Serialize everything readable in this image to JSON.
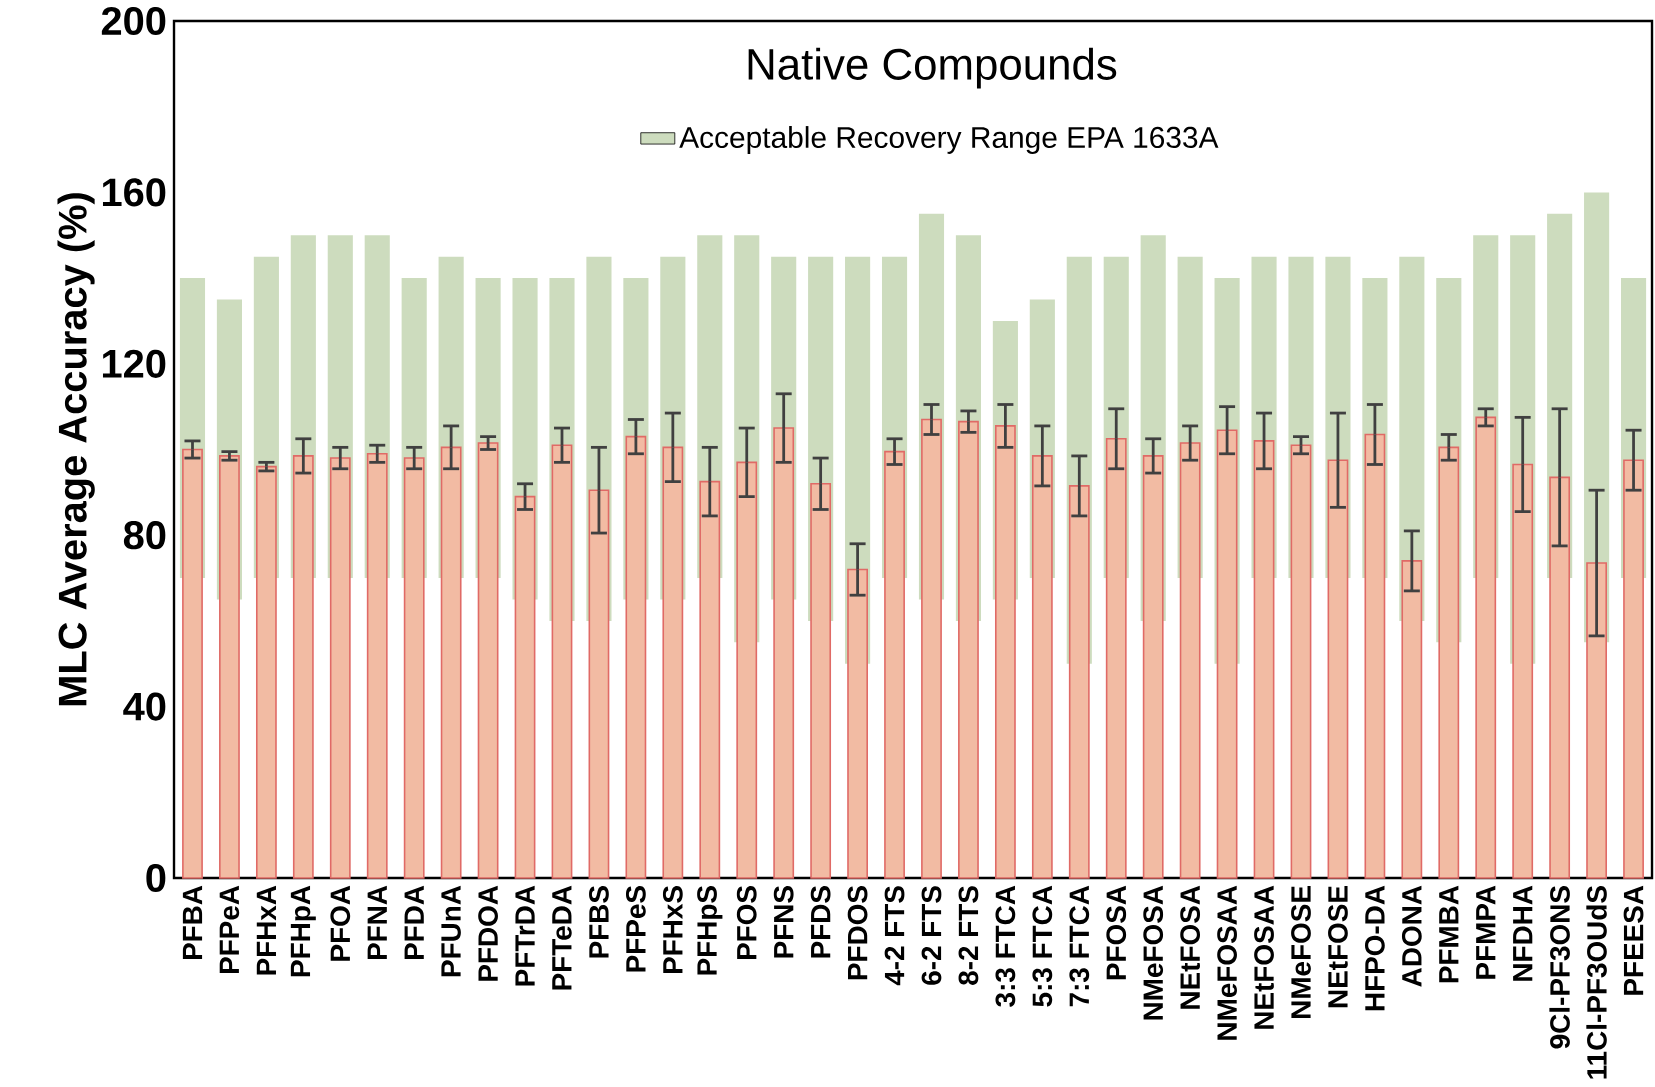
{
  "chart_data": {
    "type": "bar",
    "title": "Native Compounds",
    "ylabel": "MLC Average Accuracy (%)",
    "categories": [
      "PFBA",
      "PFPeA",
      "PFHxA",
      "PFHpA",
      "PFOA",
      "PFNA",
      "PFDA",
      "PFUnA",
      "PFDOA",
      "PFTrDA",
      "PFTeDA",
      "PFBS",
      "PFPeS",
      "PFHxS",
      "PFHpS",
      "PFOS",
      "PFNS",
      "PFDS",
      "PFDOS",
      "4-2 FTS",
      "6-2 FTS",
      "8-2 FTS",
      "3:3 FTCA",
      "5:3 FTCA",
      "7:3 FTCA",
      "PFOSA",
      "NMeFOSA",
      "NEtFOSA",
      "NMeFOSAA",
      "NEtFOSAA",
      "NMeFOSE",
      "NEtFOSE",
      "HFPO-DA",
      "ADONA",
      "PFMBA",
      "PFMPA",
      "NFDHA",
      "9Cl-PF3ONS",
      "11Cl-PF3OUdS",
      "PFEESA"
    ],
    "series": [
      {
        "name": "Acceptable Recovery Range EPA 1633A",
        "color": "#cddcbe",
        "base": [
          70,
          65,
          70,
          70,
          70,
          70,
          70,
          70,
          70,
          65,
          60,
          60,
          65,
          65,
          70,
          55,
          65,
          60,
          50,
          70,
          65,
          60,
          65,
          70,
          50,
          70,
          60,
          70,
          50,
          70,
          70,
          70,
          70,
          60,
          55,
          70,
          50,
          70,
          55,
          70
        ],
        "values": [
          70,
          70,
          75,
          80,
          80,
          80,
          70,
          75,
          70,
          75,
          80,
          85,
          75,
          80,
          80,
          95,
          80,
          85,
          95,
          75,
          90,
          90,
          65,
          65,
          95,
          75,
          90,
          75,
          90,
          75,
          75,
          75,
          70,
          85,
          85,
          80,
          100,
          85,
          105,
          70
        ]
      },
      {
        "color": "#f2bba3",
        "values": [
          100,
          98.5,
          96,
          98.5,
          98,
          99,
          98,
          100.5,
          101.5,
          89,
          101,
          90.5,
          103,
          100.5,
          92.5,
          97,
          105,
          92,
          72,
          99.5,
          107,
          106.5,
          105.5,
          98.5,
          91.5,
          102.5,
          98.5,
          101.5,
          104.5,
          102,
          101,
          97.5,
          103.5,
          74,
          100.5,
          107.5,
          96.5,
          93.5,
          73.5,
          97.5
        ],
        "errors": [
          2,
          1,
          1,
          4,
          2.5,
          2,
          2.5,
          5,
          1.5,
          3,
          4,
          10,
          4,
          8,
          8,
          8,
          8,
          6,
          6,
          3,
          3.5,
          2.5,
          5,
          7,
          7,
          7,
          4,
          4,
          5.5,
          6.5,
          2,
          11,
          7,
          7,
          3,
          2,
          11,
          16,
          17,
          7
        ]
      }
    ],
    "ylim": [
      0,
      200
    ],
    "yticks": [
      0,
      40,
      80,
      120,
      160,
      200
    ],
    "legend": "top",
    "grid": false
  }
}
